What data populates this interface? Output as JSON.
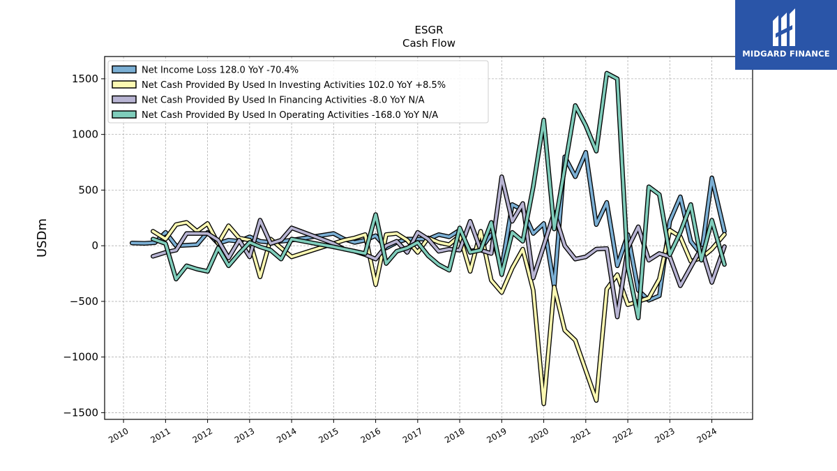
{
  "logo": {
    "text": "MIDGARD FINANCE",
    "icon": "midgard-logo-icon",
    "background": "#2a55a8"
  },
  "chart_data": {
    "type": "line",
    "title": "ESGR",
    "subtitle": "Cash Flow",
    "xlabel": "",
    "ylabel": "USDm",
    "xlim": [
      2009.55,
      2024.97
    ],
    "ylim": [
      -1560,
      1700
    ],
    "x_ticks": [
      2010,
      2011,
      2012,
      2013,
      2014,
      2015,
      2016,
      2017,
      2018,
      2019,
      2020,
      2021,
      2022,
      2023,
      2024
    ],
    "x_tick_labels": [
      "2010",
      "2011",
      "2012",
      "2013",
      "2014",
      "2015",
      "2016",
      "2017",
      "2018",
      "2019",
      "2020",
      "2021",
      "2022",
      "2023",
      "2024"
    ],
    "y_ticks": [
      -1500,
      -1000,
      -500,
      0,
      500,
      1000,
      1500
    ],
    "y_tick_labels": [
      "−1500",
      "−1000",
      "−500",
      "0",
      "500",
      "1000",
      "1500"
    ],
    "grid": true,
    "legend_position": "top-left",
    "series": [
      {
        "name": "Net Income Loss  128.0 YoY -70.4%",
        "color": "#7bafd4",
        "points": [
          [
            2010.2,
            25
          ],
          [
            2010.5,
            22
          ],
          [
            2010.75,
            28
          ],
          [
            2011.0,
            120
          ],
          [
            2011.25,
            0
          ],
          [
            2011.5,
            5
          ],
          [
            2011.75,
            10
          ],
          [
            2012.0,
            120
          ],
          [
            2012.25,
            20
          ],
          [
            2012.5,
            50
          ],
          [
            2012.75,
            40
          ],
          [
            2013.0,
            80
          ],
          [
            2013.25,
            40
          ],
          [
            2013.5,
            30
          ],
          [
            2013.75,
            40
          ],
          [
            2014.0,
            50
          ],
          [
            2015.0,
            110
          ],
          [
            2015.25,
            60
          ],
          [
            2015.5,
            30
          ],
          [
            2015.75,
            50
          ],
          [
            2016.0,
            90
          ],
          [
            2016.25,
            -20
          ],
          [
            2016.5,
            30
          ],
          [
            2016.75,
            60
          ],
          [
            2017.0,
            60
          ],
          [
            2017.25,
            60
          ],
          [
            2017.5,
            100
          ],
          [
            2017.75,
            80
          ],
          [
            2018.0,
            140
          ],
          [
            2018.25,
            -50
          ],
          [
            2018.5,
            -30
          ],
          [
            2018.75,
            100
          ],
          [
            2019.0,
            -200
          ],
          [
            2019.25,
            370
          ],
          [
            2019.5,
            320
          ],
          [
            2019.75,
            110
          ],
          [
            2020.0,
            200
          ],
          [
            2020.25,
            -370
          ],
          [
            2020.5,
            800
          ],
          [
            2020.75,
            620
          ],
          [
            2021.0,
            840
          ],
          [
            2021.25,
            190
          ],
          [
            2021.5,
            390
          ],
          [
            2021.75,
            -180
          ],
          [
            2022.0,
            100
          ],
          [
            2022.25,
            -400
          ],
          [
            2022.5,
            -490
          ],
          [
            2022.75,
            -450
          ],
          [
            2023.0,
            220
          ],
          [
            2023.25,
            440
          ],
          [
            2023.5,
            40
          ],
          [
            2023.75,
            -80
          ],
          [
            2024.0,
            610
          ],
          [
            2024.3,
            128
          ]
        ]
      },
      {
        "name": "Net Cash Provided By Used In Investing Activities  102.0 YoY +8.5%",
        "color": "#fbf8b2",
        "points": [
          [
            2010.7,
            130
          ],
          [
            2011.0,
            60
          ],
          [
            2011.25,
            190
          ],
          [
            2011.5,
            210
          ],
          [
            2011.75,
            130
          ],
          [
            2012.0,
            200
          ],
          [
            2012.25,
            20
          ],
          [
            2012.5,
            180
          ],
          [
            2012.75,
            70
          ],
          [
            2013.0,
            50
          ],
          [
            2013.25,
            -280
          ],
          [
            2013.5,
            60
          ],
          [
            2013.75,
            -20
          ],
          [
            2014.0,
            -100
          ],
          [
            2015.0,
            20
          ],
          [
            2015.25,
            50
          ],
          [
            2015.5,
            70
          ],
          [
            2015.75,
            100
          ],
          [
            2016.0,
            -350
          ],
          [
            2016.25,
            100
          ],
          [
            2016.5,
            110
          ],
          [
            2016.75,
            50
          ],
          [
            2017.0,
            -60
          ],
          [
            2017.25,
            70
          ],
          [
            2017.5,
            30
          ],
          [
            2017.75,
            10
          ],
          [
            2018.0,
            90
          ],
          [
            2018.25,
            -230
          ],
          [
            2018.5,
            130
          ],
          [
            2018.75,
            -310
          ],
          [
            2019.0,
            -420
          ],
          [
            2019.25,
            -200
          ],
          [
            2019.5,
            -30
          ],
          [
            2019.75,
            -400
          ],
          [
            2020.0,
            -1420
          ],
          [
            2020.25,
            -370
          ],
          [
            2020.5,
            -760
          ],
          [
            2020.75,
            -850
          ],
          [
            2021.0,
            -1120
          ],
          [
            2021.25,
            -1390
          ],
          [
            2021.5,
            -390
          ],
          [
            2021.75,
            -260
          ],
          [
            2022.0,
            -530
          ],
          [
            2022.25,
            -500
          ],
          [
            2022.5,
            -470
          ],
          [
            2022.75,
            -300
          ],
          [
            2023.0,
            140
          ],
          [
            2023.25,
            80
          ],
          [
            2023.5,
            -140
          ],
          [
            2023.75,
            -110
          ],
          [
            2024.0,
            -30
          ],
          [
            2024.3,
            102
          ]
        ]
      },
      {
        "name": "Net Cash Provided By Used In Financing Activities  -8.0 YoY N/A",
        "color": "#b8b4d3",
        "points": [
          [
            2010.7,
            -95
          ],
          [
            2011.0,
            -60
          ],
          [
            2011.25,
            -40
          ],
          [
            2011.5,
            110
          ],
          [
            2011.75,
            110
          ],
          [
            2012.0,
            110
          ],
          [
            2012.25,
            50
          ],
          [
            2012.5,
            -110
          ],
          [
            2012.75,
            50
          ],
          [
            2013.0,
            -100
          ],
          [
            2013.25,
            230
          ],
          [
            2013.5,
            20
          ],
          [
            2013.75,
            50
          ],
          [
            2014.0,
            160
          ],
          [
            2015.0,
            20
          ],
          [
            2015.25,
            -30
          ],
          [
            2015.5,
            -50
          ],
          [
            2015.75,
            -80
          ],
          [
            2016.0,
            -120
          ],
          [
            2016.25,
            0
          ],
          [
            2016.5,
            40
          ],
          [
            2016.75,
            -60
          ],
          [
            2017.0,
            120
          ],
          [
            2017.25,
            60
          ],
          [
            2017.5,
            -50
          ],
          [
            2017.75,
            -30
          ],
          [
            2018.0,
            -40
          ],
          [
            2018.25,
            220
          ],
          [
            2018.5,
            -40
          ],
          [
            2018.75,
            -70
          ],
          [
            2019.0,
            620
          ],
          [
            2019.25,
            220
          ],
          [
            2019.5,
            380
          ],
          [
            2019.75,
            -290
          ],
          [
            2020.0,
            0
          ],
          [
            2020.25,
            300
          ],
          [
            2020.5,
            0
          ],
          [
            2020.75,
            -120
          ],
          [
            2021.0,
            -100
          ],
          [
            2021.25,
            -30
          ],
          [
            2021.5,
            -25
          ],
          [
            2021.75,
            -640
          ],
          [
            2022.0,
            -20
          ],
          [
            2022.25,
            170
          ],
          [
            2022.5,
            -130
          ],
          [
            2022.75,
            -70
          ],
          [
            2023.0,
            -100
          ],
          [
            2023.25,
            -360
          ],
          [
            2023.5,
            -190
          ],
          [
            2023.75,
            -20
          ],
          [
            2024.0,
            -330
          ],
          [
            2024.3,
            -8
          ]
        ]
      },
      {
        "name": "Net Cash Provided By Used In Operating Activities  -168.0 YoY N/A",
        "color": "#7fcdbb",
        "points": [
          [
            2010.7,
            60
          ],
          [
            2011.0,
            20
          ],
          [
            2011.25,
            -300
          ],
          [
            2011.5,
            -180
          ],
          [
            2011.75,
            -210
          ],
          [
            2012.0,
            -230
          ],
          [
            2012.25,
            -20
          ],
          [
            2012.5,
            -180
          ],
          [
            2012.75,
            -70
          ],
          [
            2013.0,
            30
          ],
          [
            2013.25,
            -10
          ],
          [
            2013.5,
            -40
          ],
          [
            2013.75,
            -120
          ],
          [
            2014.0,
            60
          ],
          [
            2015.0,
            -10
          ],
          [
            2015.25,
            -30
          ],
          [
            2015.5,
            -50
          ],
          [
            2015.75,
            -70
          ],
          [
            2016.0,
            280
          ],
          [
            2016.25,
            -160
          ],
          [
            2016.5,
            -50
          ],
          [
            2016.75,
            -20
          ],
          [
            2017.0,
            30
          ],
          [
            2017.25,
            -90
          ],
          [
            2017.5,
            -170
          ],
          [
            2017.75,
            -220
          ],
          [
            2018.0,
            160
          ],
          [
            2018.25,
            -60
          ],
          [
            2018.5,
            -40
          ],
          [
            2018.75,
            210
          ],
          [
            2019.0,
            -260
          ],
          [
            2019.25,
            120
          ],
          [
            2019.5,
            40
          ],
          [
            2019.75,
            530
          ],
          [
            2020.0,
            1130
          ],
          [
            2020.25,
            150
          ],
          [
            2020.5,
            700
          ],
          [
            2020.75,
            1260
          ],
          [
            2021.0,
            1080
          ],
          [
            2021.25,
            850
          ],
          [
            2021.5,
            1550
          ],
          [
            2021.75,
            1500
          ],
          [
            2022.0,
            -190
          ],
          [
            2022.25,
            -650
          ],
          [
            2022.5,
            530
          ],
          [
            2022.75,
            460
          ],
          [
            2023.0,
            -80
          ],
          [
            2023.25,
            120
          ],
          [
            2023.5,
            370
          ],
          [
            2023.75,
            -130
          ],
          [
            2024.0,
            230
          ],
          [
            2024.3,
            -168
          ]
        ]
      }
    ]
  }
}
